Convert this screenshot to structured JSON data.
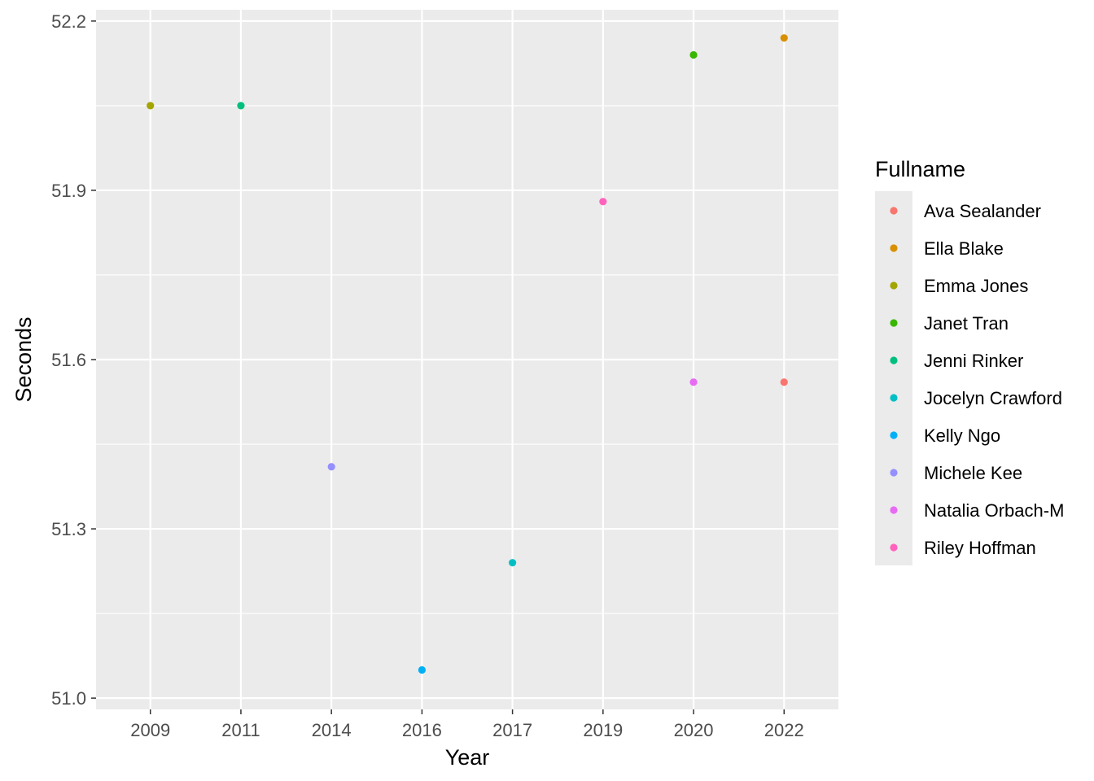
{
  "chart_data": {
    "type": "scatter",
    "xlabel": "Year",
    "ylabel": "Seconds",
    "x_categories": [
      "2009",
      "2011",
      "2014",
      "2016",
      "2017",
      "2019",
      "2020",
      "2022"
    ],
    "ylim": [
      50.98,
      52.22
    ],
    "y_ticks": [
      51.0,
      51.3,
      51.6,
      51.9,
      52.2
    ],
    "y_tick_labels": [
      "51.0",
      "51.3",
      "51.6",
      "51.9",
      "52.2"
    ],
    "grid": true,
    "background": "#ebebeb",
    "legend": {
      "title": "Fullname",
      "placement": "right",
      "entries": [
        {
          "name": "Ava Sealander",
          "color": "#F8766D"
        },
        {
          "name": "Ella Blake",
          "color": "#D89000"
        },
        {
          "name": "Emma Jones",
          "color": "#A3A500"
        },
        {
          "name": "Janet Tran",
          "color": "#39B600"
        },
        {
          "name": "Jenni Rinker",
          "color": "#00BF7D"
        },
        {
          "name": "Jocelyn Crawford",
          "color": "#00BFC4"
        },
        {
          "name": "Kelly Ngo",
          "color": "#00B0F6"
        },
        {
          "name": "Michele Kee",
          "color": "#9590FF"
        },
        {
          "name": "Natalia Orbach-M",
          "color": "#E76BF3"
        },
        {
          "name": "Riley Hoffman",
          "color": "#FF62BC"
        }
      ]
    },
    "points": [
      {
        "x": "2009",
        "y": 52.05,
        "name": "Emma Jones"
      },
      {
        "x": "2011",
        "y": 52.05,
        "name": "Jenni Rinker"
      },
      {
        "x": "2014",
        "y": 51.41,
        "name": "Michele Kee"
      },
      {
        "x": "2016",
        "y": 51.05,
        "name": "Kelly Ngo"
      },
      {
        "x": "2017",
        "y": 51.24,
        "name": "Jocelyn Crawford"
      },
      {
        "x": "2019",
        "y": 51.88,
        "name": "Riley Hoffman"
      },
      {
        "x": "2020",
        "y": 52.14,
        "name": "Janet Tran"
      },
      {
        "x": "2020",
        "y": 51.56,
        "name": "Natalia Orbach-M"
      },
      {
        "x": "2022",
        "y": 52.17,
        "name": "Ella Blake"
      },
      {
        "x": "2022",
        "y": 51.56,
        "name": "Ava Sealander"
      }
    ]
  }
}
